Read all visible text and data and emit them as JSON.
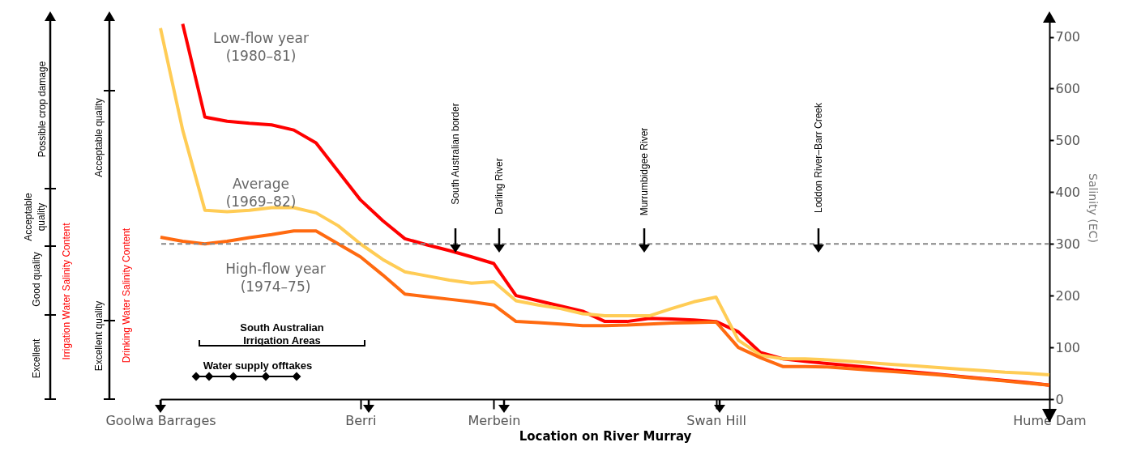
{
  "chart_data": {
    "type": "line",
    "xlabel": "Location on River Murray",
    "ylabel": "Salinity (EC)",
    "categories": [
      "Goolwa Barrages",
      null,
      null,
      null,
      null,
      null,
      null,
      null,
      null,
      "Berri",
      null,
      null,
      null,
      null,
      null,
      "Merbein",
      null,
      null,
      null,
      null,
      null,
      null,
      null,
      null,
      null,
      "Swan Hill",
      null,
      null,
      null,
      null,
      null,
      null,
      null,
      null,
      null,
      null,
      null,
      null,
      null,
      null,
      "Hume Dam"
    ],
    "series": [
      {
        "name": "Low-flow year (1980–81)",
        "color": "#ff0000",
        "values": [
          null,
          725,
          545,
          537,
          533,
          530,
          520,
          495,
          440,
          385,
          345,
          310,
          298,
          287,
          275,
          262,
          200,
          190,
          180,
          170,
          150,
          150,
          156,
          155,
          153,
          150,
          130,
          90,
          78,
          73,
          69,
          65,
          61,
          56,
          52,
          48,
          44,
          40,
          36,
          32,
          27
        ]
      },
      {
        "name": "Average (1969–82)",
        "color": "#ffcc55",
        "values": [
          717,
          520,
          365,
          362,
          365,
          370,
          370,
          360,
          335,
          300,
          270,
          246,
          238,
          230,
          224,
          227,
          190,
          182,
          175,
          165,
          161,
          161,
          161,
          175,
          188,
          197,
          114,
          85,
          78,
          78,
          76,
          73,
          70,
          67,
          64,
          61,
          58,
          55,
          52,
          50,
          47
        ]
      },
      {
        "name": "High-flow year (1974–75)",
        "color": "#ff6a10",
        "values": [
          313,
          305,
          300,
          305,
          312,
          318,
          325,
          325,
          300,
          275,
          240,
          203,
          198,
          193,
          188,
          182,
          150,
          148,
          145,
          142,
          142,
          143,
          145,
          147,
          148,
          149,
          100,
          80,
          63,
          63,
          62,
          59,
          56,
          53,
          50,
          47,
          43,
          39,
          35,
          31,
          27
        ]
      }
    ],
    "ylim": [
      0,
      740
    ],
    "yticks": [
      0,
      100,
      200,
      300,
      400,
      500,
      600,
      700
    ],
    "ref_lines": [
      {
        "axis": "y",
        "value": 300,
        "color": "#888888",
        "line_style": "dashed"
      }
    ],
    "annotations": [
      "Excellent",
      "Good quality",
      "Acceptable quality",
      "Possible crop damage",
      "Irrigation Water Salinity Content",
      "Excellent quality",
      "Acceptable quality",
      "Drinking Water Salinity Content",
      "South Australian border",
      "Darling River",
      "Murrumbidgee River",
      "Loddon River–Barr Creek",
      "South Australian Irrigation Areas",
      "Water supply offtakes"
    ],
    "grid": false,
    "legend": false,
    "marker": "none",
    "line_style": "solid"
  }
}
